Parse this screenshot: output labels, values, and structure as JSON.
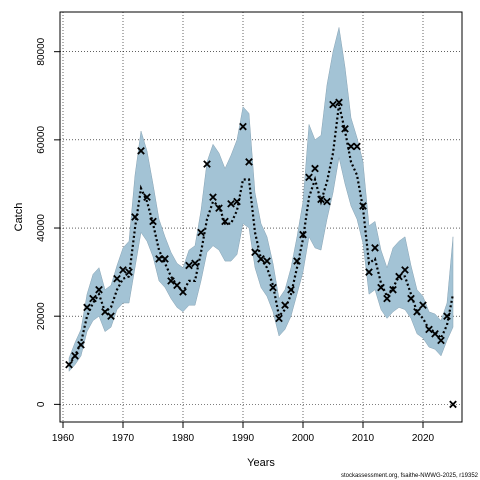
{
  "chart_data": {
    "type": "line",
    "xlabel": "Years",
    "ylabel": "Catch",
    "source_note": "stockassessment.org, fsaithe-NWWG-2025, r19352",
    "xlim": [
      1959.5,
      2026.5
    ],
    "ylim": [
      -4000,
      89000
    ],
    "x_ticks": [
      1960,
      1970,
      1980,
      1990,
      2000,
      2010,
      2020
    ],
    "y_ticks": [
      0,
      20000,
      40000,
      60000,
      80000
    ],
    "y_tick_labels": [
      "0",
      "20000",
      "40000",
      "60000",
      "80000"
    ],
    "grid": true,
    "colors": {
      "band": "#a3c3d5",
      "band_edge": "#86a2b3",
      "line": "#000000",
      "points": "#000000"
    },
    "series": [
      {
        "kind": "observed",
        "marker": "x",
        "x": [
          1961,
          1962,
          1963,
          1964,
          1965,
          1966,
          1967,
          1968,
          1969,
          1970,
          1971,
          1972,
          1973,
          1974,
          1975,
          1976,
          1977,
          1978,
          1979,
          1980,
          1981,
          1982,
          1983,
          1984,
          1985,
          1986,
          1987,
          1988,
          1989,
          1990,
          1991,
          1992,
          1993,
          1994,
          1995,
          1996,
          1997,
          1998,
          1999,
          2000,
          2001,
          2002,
          2003,
          2004,
          2005,
          2006,
          2007,
          2008,
          2009,
          2010,
          2011,
          2012,
          2013,
          2014,
          2015,
          2016,
          2017,
          2018,
          2019,
          2020,
          2021,
          2022,
          2023,
          2024,
          2025
        ],
        "y": [
          9000,
          11000,
          13500,
          22000,
          24000,
          26000,
          21000,
          20000,
          28500,
          30500,
          30000,
          42500,
          57500,
          47000,
          41500,
          33000,
          33000,
          28000,
          27000,
          25500,
          31500,
          32000,
          39000,
          54500,
          47000,
          44500,
          41500,
          45500,
          46000,
          63000,
          55000,
          34500,
          33000,
          32500,
          26500,
          19500,
          22500,
          26000,
          32500,
          38500,
          51500,
          53500,
          46500,
          46000,
          68000,
          68500,
          62500,
          58500,
          58500,
          45000,
          30000,
          35500,
          26500,
          24000,
          26000,
          29000,
          30500,
          24000,
          21000,
          22500,
          17000,
          16000,
          14500,
          20000,
          0
        ]
      },
      {
        "kind": "estimated",
        "style": "dotted",
        "x": [
          1961,
          1962,
          1963,
          1964,
          1965,
          1966,
          1967,
          1968,
          1969,
          1970,
          1971,
          1972,
          1973,
          1974,
          1975,
          1976,
          1977,
          1978,
          1979,
          1980,
          1981,
          1982,
          1983,
          1984,
          1985,
          1986,
          1987,
          1988,
          1989,
          1990,
          1991,
          1992,
          1993,
          1994,
          1995,
          1996,
          1997,
          1998,
          1999,
          2000,
          2001,
          2002,
          2003,
          2004,
          2005,
          2006,
          2007,
          2008,
          2009,
          2010,
          2011,
          2012,
          2013,
          2014,
          2015,
          2016,
          2017,
          2018,
          2019,
          2020,
          2021,
          2022,
          2023,
          2024,
          2025
        ],
        "y": [
          9000,
          11000,
          14000,
          20000,
          23000,
          25000,
          21000,
          22000,
          26000,
          28500,
          29000,
          40000,
          49000,
          46000,
          41000,
          35000,
          32000,
          29000,
          27000,
          25500,
          28000,
          28000,
          34500,
          42000,
          46000,
          45000,
          41000,
          41000,
          44000,
          51000,
          51000,
          39000,
          33000,
          31000,
          27000,
          20000,
          21500,
          25000,
          31000,
          37500,
          47000,
          51000,
          46000,
          50500,
          57000,
          68000,
          62000,
          55000,
          52000,
          44500,
          32000,
          33000,
          27500,
          24500,
          26500,
          29000,
          29000,
          25000,
          21000,
          19500,
          17000,
          16500,
          15000,
          18000,
          25000
        ],
        "upper": [
          10500,
          14000,
          17000,
          25000,
          29500,
          31000,
          26000,
          27000,
          31500,
          35500,
          37000,
          52000,
          62000,
          57500,
          50000,
          42000,
          38000,
          34500,
          32000,
          31000,
          35000,
          36000,
          44000,
          55000,
          59000,
          57000,
          53500,
          56500,
          60000,
          67500,
          66000,
          48000,
          41000,
          38000,
          32000,
          24000,
          26000,
          31000,
          38000,
          46000,
          63500,
          60000,
          61000,
          72500,
          80000,
          85500,
          76500,
          65000,
          60500,
          55000,
          40500,
          41500,
          35000,
          31000,
          35500,
          37000,
          38000,
          31500,
          26000,
          24500,
          21000,
          20500,
          19000,
          23000,
          38000
        ],
        "lower": [
          7500,
          9000,
          11000,
          16500,
          19000,
          20000,
          16500,
          17500,
          21500,
          23000,
          23000,
          31000,
          39000,
          37000,
          33500,
          28000,
          26500,
          24000,
          22000,
          21000,
          22500,
          22500,
          28000,
          34500,
          36000,
          35000,
          32500,
          32500,
          34000,
          41000,
          40000,
          31000,
          26500,
          24500,
          21000,
          15500,
          17000,
          20000,
          25000,
          30000,
          38000,
          35500,
          35000,
          42000,
          48000,
          56000,
          50000,
          45000,
          42000,
          36500,
          25000,
          26000,
          21500,
          19500,
          21000,
          22000,
          21500,
          19500,
          16000,
          15000,
          13000,
          12500,
          11000,
          14500,
          17500
        ]
      }
    ]
  }
}
